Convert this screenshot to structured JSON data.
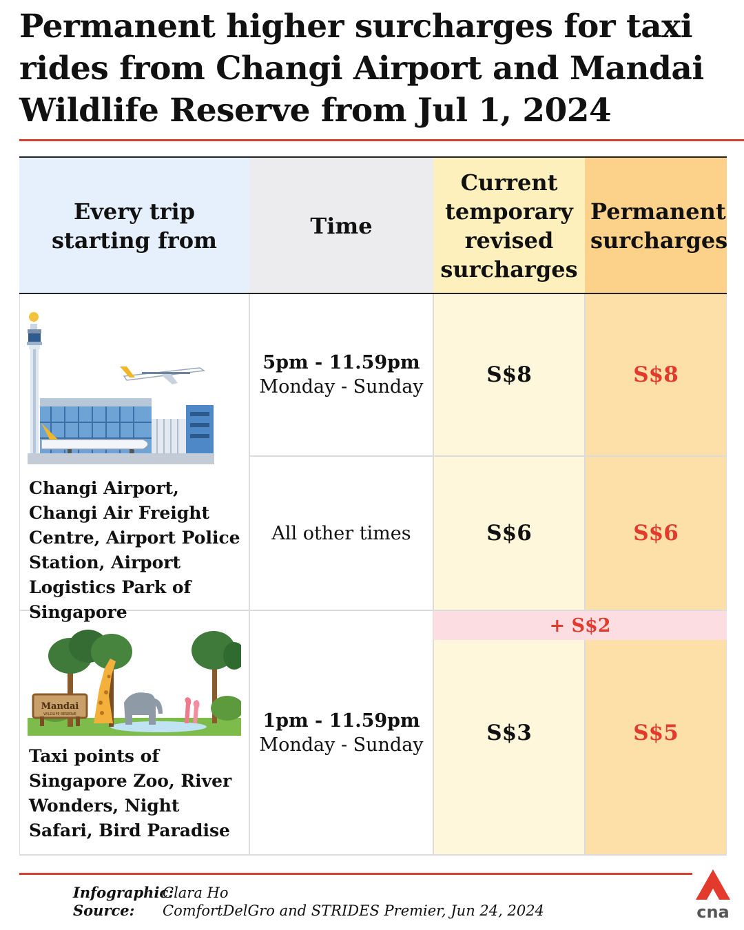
{
  "title": "Permanent higher surcharges for taxi rides from Changi Airport and Mandai Wildlife Reserve from Jul 1, 2024",
  "table": {
    "headers": {
      "trip": "Every trip starting from",
      "time": "Time",
      "current": "Current temporary revised surcharges",
      "permanent": "Permanent surcharges"
    },
    "changi": {
      "place": "Changi Airport, Changi Air Freight Centre, Airport Police Station, Airport Logistics Park of Singapore",
      "peak_time": "5pm - 11.59pm",
      "peak_days": "Monday - Sunday",
      "peak_current": "S$8",
      "peak_permanent": "S$8",
      "other_time": "All other times",
      "other_current": "S$6",
      "other_permanent": "S$6"
    },
    "mandai": {
      "place": "Taxi points of Singapore Zoo, River Wonders, Night Safari, Bird Paradise",
      "sign_title": "Mandai",
      "sign_subtitle": "WILDLIFE RESERVE",
      "time": "1pm - 11.59pm",
      "days": "Monday - Sunday",
      "increase": "+ S$2",
      "current": "S$3",
      "permanent": "S$5"
    }
  },
  "footer": {
    "infographic_label": "Infographic:",
    "infographic_value": "Clara Ho",
    "source_label": "Source:",
    "source_value": "ComfortDelGro and STRIDES Premier, Jun 24, 2024"
  },
  "logo_text": "cna",
  "colors": {
    "accent_red": "#e23a2c",
    "header_blue": "#e6effc",
    "header_grey": "#ececee",
    "header_yellow": "#fdf0bd",
    "header_orange": "#fcd28a",
    "cell_yellow": "#fef7dc",
    "cell_orange": "#fde0a8",
    "increase_pink": "#fcdde1"
  }
}
